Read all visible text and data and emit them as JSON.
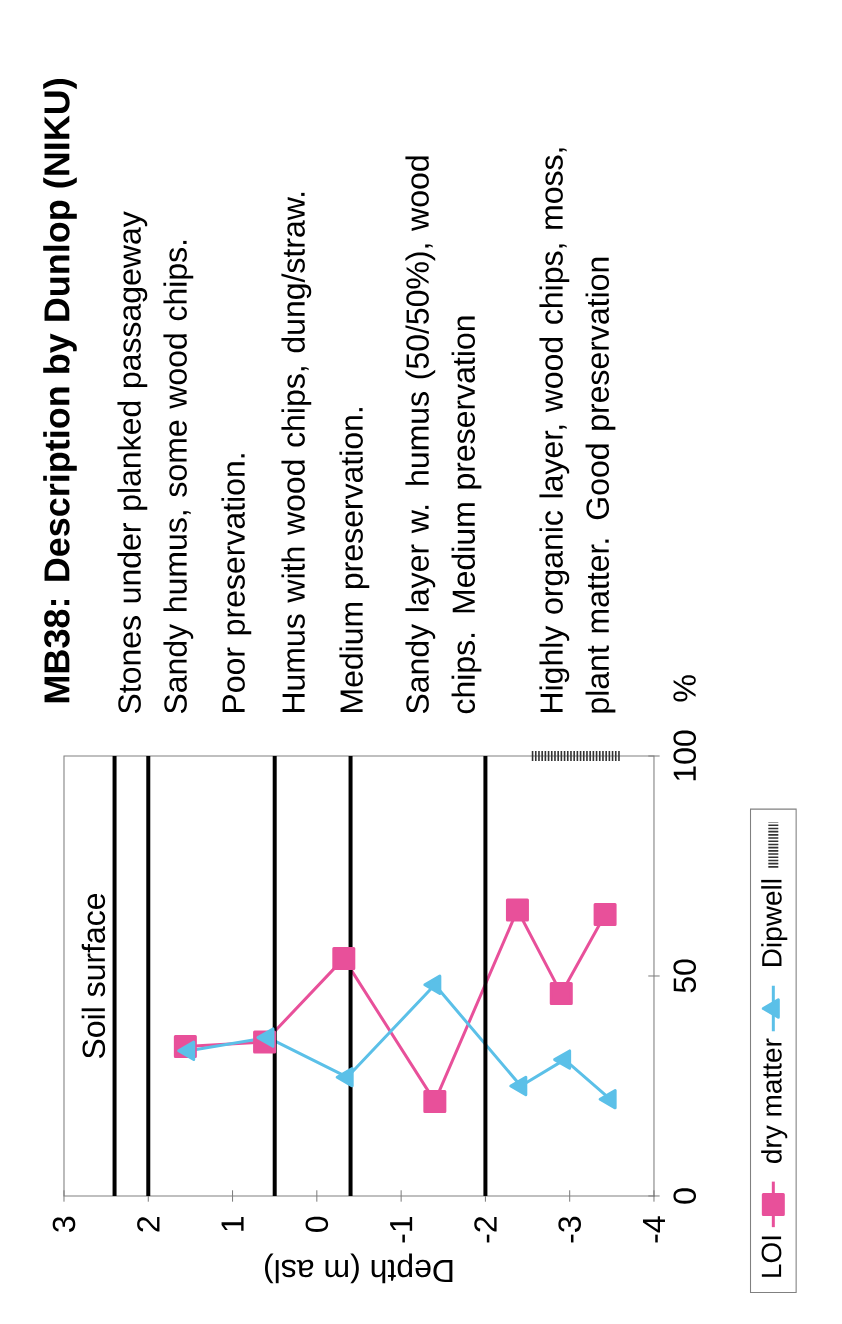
{
  "chart_data": {
    "type": "line",
    "title": "MB38: Description by Dunlop (NIKU)",
    "xlabel": "Depth (m asl)",
    "ylabel": "%",
    "xlim": [
      3,
      -4
    ],
    "xticks": [
      3,
      2,
      1,
      0,
      -1,
      -2,
      -3,
      -4
    ],
    "ylim": [
      0,
      100
    ],
    "yticks": [
      0,
      50,
      100
    ],
    "series": [
      {
        "name": "LOI",
        "color": "#e8509a",
        "marker": "square",
        "line_style": "solid",
        "x": [
          1.56,
          0.62,
          -0.32,
          -1.4,
          -2.38,
          -2.9,
          -3.42
        ],
        "values": [
          34,
          35,
          54,
          21.5,
          65,
          46,
          64
        ]
      },
      {
        "name": "dry matter",
        "color": "#5bc0e8",
        "marker": "triangle",
        "line_style": "solid",
        "x": [
          1.52,
          0.58,
          -0.36,
          -1.4,
          -2.42,
          -2.94,
          -3.48
        ],
        "values": [
          33,
          36,
          27,
          48,
          25,
          31,
          22
        ]
      },
      {
        "name": "Dipwell",
        "color": "#333333",
        "marker": "none",
        "line_style": "dotted",
        "x": [
          -2.55,
          -3.6
        ],
        "values": [
          100,
          100
        ]
      }
    ],
    "ref_lines": [
      {
        "axis": "x",
        "value": 2.4,
        "label": "Soil surface",
        "color": "#000000"
      },
      {
        "axis": "x",
        "value": 2,
        "color": "#000000"
      },
      {
        "axis": "x",
        "value": 0.5,
        "color": "#000000"
      },
      {
        "axis": "x",
        "value": -0.4,
        "color": "#000000"
      },
      {
        "axis": "x",
        "value": -2,
        "color": "#000000"
      }
    ],
    "annotations": [
      "Stones under  planked passageway",
      "Sandy humus, some wood chips.",
      "Poor preservation.",
      "Humus with wood chips, dung/straw.",
      "Medium preservation.",
      "Sandy layer w. humus (50/50%), wood chips. Medium preservation",
      "Highly organic layer, wood chips, moss, plant matter. Good preservation"
    ],
    "legend": "bottom",
    "grid": false
  }
}
